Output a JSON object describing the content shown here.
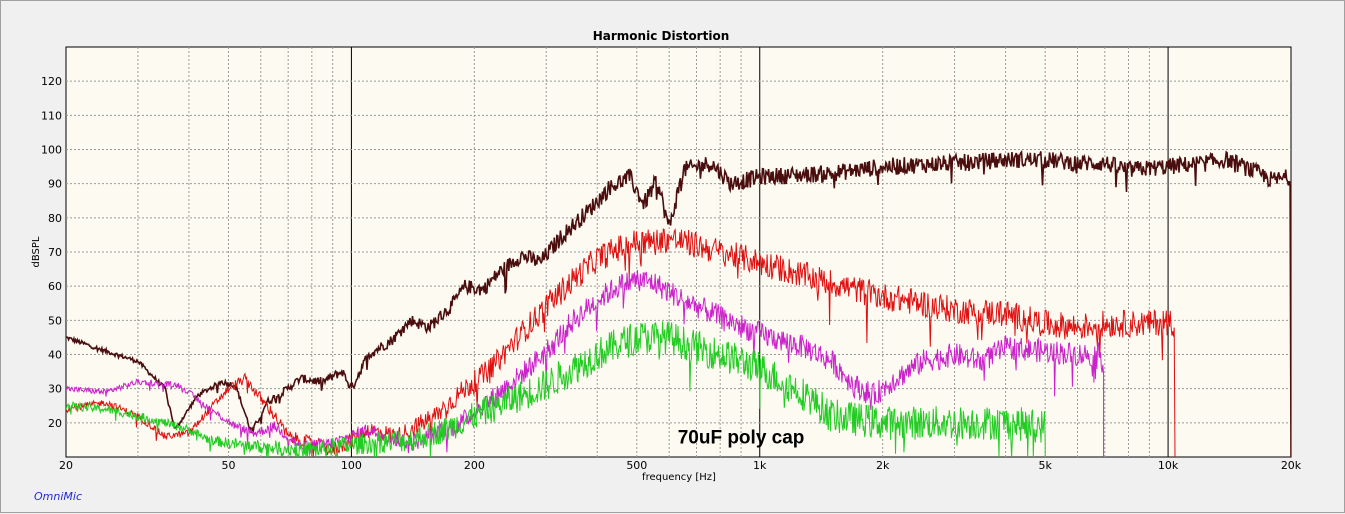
{
  "app": {
    "brand": "OmniMic"
  },
  "chart_data": {
    "type": "line",
    "title": "Harmonic Distortion",
    "xlabel": "frequency [Hz]",
    "ylabel": "dBSPL",
    "xscale": "log",
    "xlim": [
      20,
      20000
    ],
    "ylim": [
      10,
      130
    ],
    "grid": true,
    "x_ticks": [
      {
        "v": 20,
        "label": "20"
      },
      {
        "v": 50,
        "label": "50"
      },
      {
        "v": 100,
        "label": "100"
      },
      {
        "v": 200,
        "label": "200"
      },
      {
        "v": 500,
        "label": "500"
      },
      {
        "v": 1000,
        "label": "1k"
      },
      {
        "v": 2000,
        "label": "2k"
      },
      {
        "v": 5000,
        "label": "5k"
      },
      {
        "v": 10000,
        "label": "10k"
      },
      {
        "v": 20000,
        "label": "20k"
      }
    ],
    "y_ticks": [
      {
        "v": 20,
        "label": "20"
      },
      {
        "v": 30,
        "label": "30"
      },
      {
        "v": 40,
        "label": "40"
      },
      {
        "v": 50,
        "label": "50"
      },
      {
        "v": 60,
        "label": "60"
      },
      {
        "v": 70,
        "label": "70"
      },
      {
        "v": 80,
        "label": "80"
      },
      {
        "v": 90,
        "label": "90"
      },
      {
        "v": 100,
        "label": "100"
      },
      {
        "v": 110,
        "label": "110"
      },
      {
        "v": 120,
        "label": "120"
      }
    ],
    "annotations": [
      {
        "text": "70uF poly cap",
        "x": 900,
        "y": 14
      }
    ],
    "series": [
      {
        "color": "#4a0e0e",
        "stroke_width": 1.6,
        "noise": 2.5,
        "points": [
          [
            20,
            45
          ],
          [
            25,
            41
          ],
          [
            30,
            38
          ],
          [
            35,
            30
          ],
          [
            37,
            18
          ],
          [
            42,
            28
          ],
          [
            48,
            32
          ],
          [
            52,
            31
          ],
          [
            57,
            17
          ],
          [
            62,
            26
          ],
          [
            68,
            29
          ],
          [
            75,
            33
          ],
          [
            85,
            32
          ],
          [
            95,
            35
          ],
          [
            100,
            30
          ],
          [
            110,
            40
          ],
          [
            125,
            44
          ],
          [
            140,
            50
          ],
          [
            155,
            48
          ],
          [
            175,
            54
          ],
          [
            190,
            60
          ],
          [
            210,
            59
          ],
          [
            230,
            64
          ],
          [
            260,
            69
          ],
          [
            290,
            67
          ],
          [
            330,
            75
          ],
          [
            380,
            82
          ],
          [
            430,
            89
          ],
          [
            480,
            92
          ],
          [
            520,
            84
          ],
          [
            560,
            91
          ],
          [
            600,
            77
          ],
          [
            650,
            94
          ],
          [
            700,
            95
          ],
          [
            760,
            96
          ],
          [
            850,
            90
          ],
          [
            1000,
            92
          ],
          [
            1500,
            93
          ],
          [
            2000,
            95
          ],
          [
            3000,
            96
          ],
          [
            4000,
            97
          ],
          [
            5000,
            97
          ],
          [
            6000,
            96
          ],
          [
            7000,
            96
          ],
          [
            8000,
            94
          ],
          [
            10000,
            95
          ],
          [
            12000,
            96
          ],
          [
            14000,
            97
          ],
          [
            16000,
            94
          ],
          [
            18000,
            91
          ],
          [
            20000,
            92
          ]
        ]
      },
      {
        "color": "#e01010",
        "stroke_width": 1,
        "noise": 4,
        "points": [
          [
            20,
            24
          ],
          [
            25,
            26
          ],
          [
            30,
            22
          ],
          [
            35,
            16
          ],
          [
            40,
            17
          ],
          [
            45,
            24
          ],
          [
            50,
            30
          ],
          [
            55,
            33
          ],
          [
            60,
            27
          ],
          [
            65,
            22
          ],
          [
            70,
            16
          ],
          [
            80,
            14
          ],
          [
            90,
            12
          ],
          [
            100,
            15
          ],
          [
            110,
            18
          ],
          [
            130,
            16
          ],
          [
            160,
            22
          ],
          [
            190,
            30
          ],
          [
            220,
            36
          ],
          [
            260,
            46
          ],
          [
            300,
            54
          ],
          [
            350,
            62
          ],
          [
            400,
            68
          ],
          [
            450,
            71
          ],
          [
            500,
            73
          ],
          [
            550,
            73
          ],
          [
            600,
            74
          ],
          [
            700,
            72
          ],
          [
            800,
            70
          ],
          [
            1000,
            67
          ],
          [
            1300,
            63
          ],
          [
            1600,
            60
          ],
          [
            2000,
            57
          ],
          [
            2500,
            55
          ],
          [
            3000,
            53
          ],
          [
            4000,
            52
          ],
          [
            5000,
            49
          ],
          [
            6000,
            48
          ],
          [
            7000,
            49
          ],
          [
            8000,
            49
          ],
          [
            9000,
            49
          ],
          [
            10000,
            50
          ],
          [
            10400,
            49
          ]
        ]
      },
      {
        "color": "#cc22cc",
        "stroke_width": 1,
        "noise": 3.5,
        "points": [
          [
            20,
            30
          ],
          [
            25,
            29
          ],
          [
            30,
            32
          ],
          [
            38,
            31
          ],
          [
            45,
            24
          ],
          [
            52,
            19
          ],
          [
            58,
            17
          ],
          [
            65,
            19
          ],
          [
            75,
            13
          ],
          [
            90,
            14
          ],
          [
            110,
            18
          ],
          [
            140,
            14
          ],
          [
            180,
            19
          ],
          [
            220,
            27
          ],
          [
            260,
            34
          ],
          [
            300,
            41
          ],
          [
            350,
            50
          ],
          [
            400,
            56
          ],
          [
            450,
            60
          ],
          [
            500,
            62
          ],
          [
            550,
            61
          ],
          [
            650,
            56
          ],
          [
            800,
            51
          ],
          [
            1000,
            46
          ],
          [
            1300,
            42
          ],
          [
            1500,
            38
          ],
          [
            1700,
            31
          ],
          [
            1900,
            28
          ],
          [
            2100,
            32
          ],
          [
            2500,
            38
          ],
          [
            3000,
            40
          ],
          [
            3500,
            38
          ],
          [
            4000,
            42
          ],
          [
            5000,
            41
          ],
          [
            6000,
            40
          ],
          [
            6800,
            40
          ],
          [
            6950,
            37
          ]
        ]
      },
      {
        "color": "#22cc22",
        "stroke_width": 1,
        "noise": 5,
        "points": [
          [
            20,
            25
          ],
          [
            25,
            24
          ],
          [
            30,
            22
          ],
          [
            35,
            20
          ],
          [
            40,
            18
          ],
          [
            45,
            15
          ],
          [
            50,
            14
          ],
          [
            60,
            13
          ],
          [
            80,
            12
          ],
          [
            110,
            14
          ],
          [
            140,
            15
          ],
          [
            170,
            18
          ],
          [
            200,
            22
          ],
          [
            250,
            27
          ],
          [
            300,
            31
          ],
          [
            350,
            36
          ],
          [
            400,
            40
          ],
          [
            450,
            43
          ],
          [
            500,
            45
          ],
          [
            600,
            45
          ],
          [
            700,
            42
          ],
          [
            800,
            40
          ],
          [
            900,
            38
          ],
          [
            1000,
            36
          ],
          [
            1300,
            28
          ],
          [
            1500,
            22
          ],
          [
            2000,
            20
          ],
          [
            3000,
            20
          ],
          [
            4000,
            20
          ],
          [
            5000,
            19
          ]
        ]
      }
    ]
  }
}
